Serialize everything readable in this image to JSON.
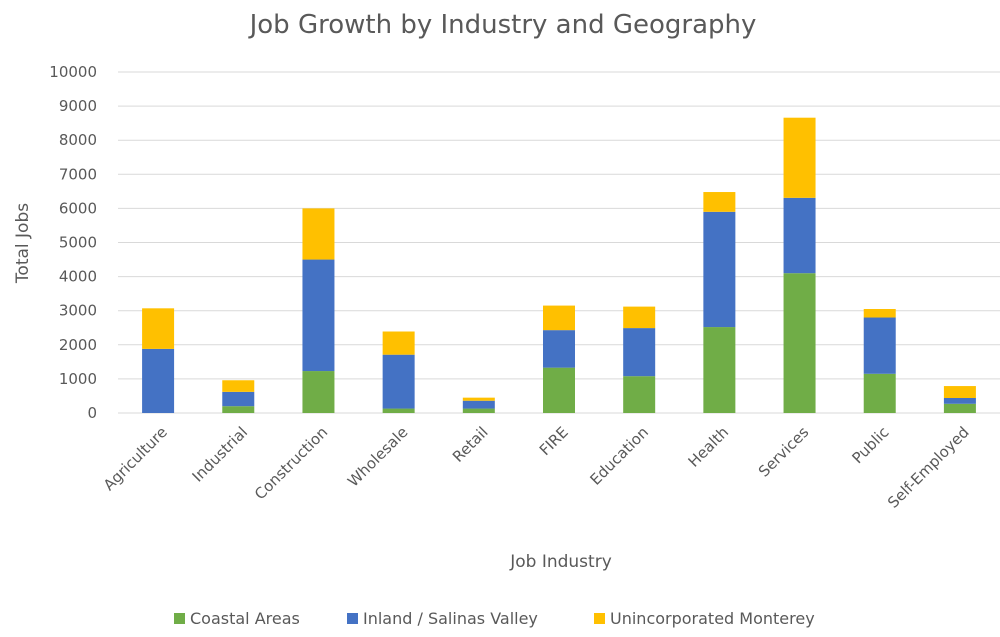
{
  "chart_data": {
    "type": "bar",
    "stacked": true,
    "title": "Job Growth by Industry and Geography",
    "xlabel": "Job Industry",
    "ylabel": "Total Jobs",
    "ylim": [
      0,
      10000
    ],
    "yticks": [
      0,
      1000,
      2000,
      3000,
      4000,
      5000,
      6000,
      7000,
      8000,
      9000,
      10000
    ],
    "grid": true,
    "legend_position": "bottom",
    "categories": [
      "Agriculture",
      "Industrial",
      "Construction",
      "Wholesale",
      "Retail",
      "FIRE",
      "Education",
      "Health",
      "Services",
      "Public",
      "Self-Employed"
    ],
    "series": [
      {
        "name": "Coastal Areas",
        "color": "#70ad47",
        "values": [
          0,
          200,
          1230,
          130,
          130,
          1330,
          1080,
          2520,
          4100,
          1150,
          270
        ]
      },
      {
        "name": "Inland / Salinas Valley",
        "color": "#4472c4",
        "values": [
          1880,
          420,
          3270,
          1580,
          230,
          1100,
          1410,
          3380,
          2210,
          1650,
          170
        ]
      },
      {
        "name": "Unincorporated Monterey",
        "color": "#ffc000",
        "values": [
          1190,
          340,
          1500,
          680,
          90,
          720,
          630,
          580,
          2350,
          250,
          350
        ]
      }
    ]
  }
}
